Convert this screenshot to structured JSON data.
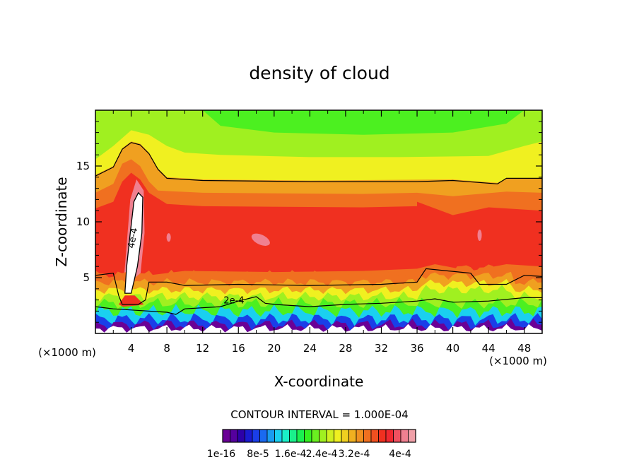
{
  "chart_data": {
    "type": "heatmap",
    "title": "density of cloud",
    "xlabel": "X-coordinate",
    "ylabel": "Z-coordinate",
    "x_unit_left": "(×1000 m)",
    "x_unit_right": "(×1000 m)",
    "xlim": [
      0,
      50
    ],
    "ylim": [
      0,
      20
    ],
    "x_ticks": [
      4,
      8,
      12,
      16,
      20,
      24,
      28,
      32,
      36,
      40,
      44,
      48
    ],
    "y_ticks": [
      5,
      10,
      15
    ],
    "contour_interval_text": "CONTOUR INTERVAL = 1.000E-04",
    "contour_labels": [
      {
        "text": "4e-4",
        "x": 4.5,
        "z": 8.5
      },
      {
        "text": "2e-4",
        "x": 15.5,
        "z": 2.7
      }
    ],
    "colorbar": {
      "labels": [
        "1e-16",
        "8e-5",
        "1.6e-4",
        "2.4e-4",
        "3.2e-4",
        "4e-4"
      ],
      "label_text": [
        "1e-16",
        "8e-5",
        "1.6e-4",
        "2.4e-4",
        "3.2e-4",
        "4e-4"
      ],
      "colors": [
        "#6a0096",
        "#55009e",
        "#2d00a8",
        "#1a1ad0",
        "#1a3ee8",
        "#1a6af0",
        "#1a9cf0",
        "#1ad0f0",
        "#1af0c8",
        "#1af08c",
        "#1af050",
        "#34f020",
        "#6af020",
        "#a0f020",
        "#d0f020",
        "#f0f020",
        "#f0d020",
        "#f0b020",
        "#f09020",
        "#f07020",
        "#f05020",
        "#f03020",
        "#f02830",
        "#f05060",
        "#f08090",
        "#f0a0a8"
      ]
    },
    "levels": [
      {
        "name": "top-green",
        "color": "#4cf020"
      },
      {
        "name": "lime",
        "color": "#a0f020"
      },
      {
        "name": "yellow",
        "color": "#f0f020"
      },
      {
        "name": "orange",
        "color": "#f0a020"
      },
      {
        "name": "dark-orange",
        "color": "#f07020"
      },
      {
        "name": "red",
        "color": "#f03020"
      },
      {
        "name": "pink",
        "color": "#f08090"
      },
      {
        "name": "peak-white",
        "color": "#ffffff"
      },
      {
        "name": "cyan",
        "color": "#1ad0f0"
      },
      {
        "name": "blue",
        "color": "#1a3ee8"
      },
      {
        "name": "purple",
        "color": "#6a0096"
      }
    ]
  }
}
